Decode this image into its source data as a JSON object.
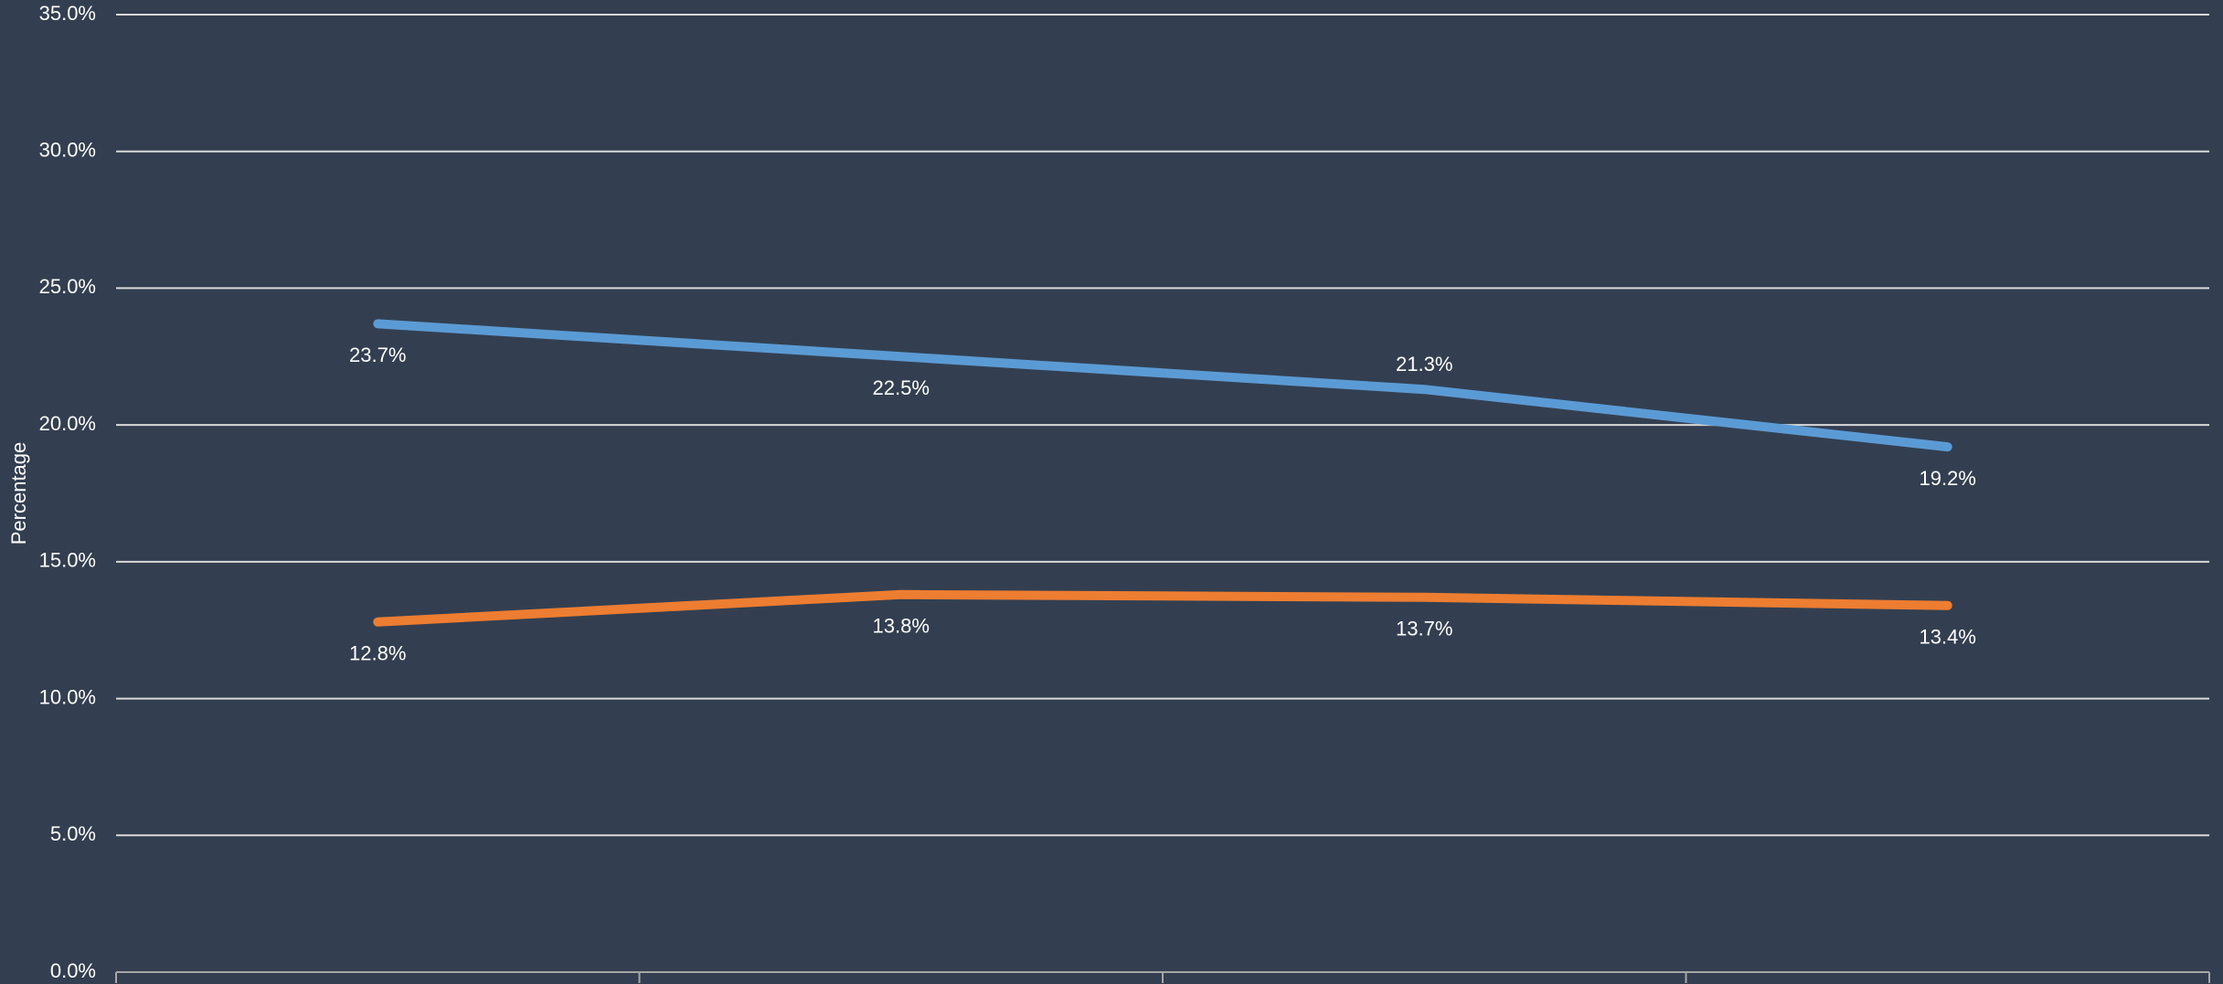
{
  "chart_data": {
    "type": "line",
    "y_label": "Percentage",
    "categories": [
      null,
      null,
      null,
      null
    ],
    "series": [
      {
        "color": "#5b9bd5",
        "values": [
          23.7,
          22.5,
          21.3,
          19.2
        ],
        "value_labels": [
          "23.7%",
          "22.5%",
          "21.3%",
          "19.2%"
        ]
      },
      {
        "color": "#ed7d31",
        "values": [
          12.8,
          13.8,
          13.7,
          13.4
        ],
        "value_labels": [
          "12.8%",
          "13.8%",
          "13.7%",
          "13.4%"
        ]
      }
    ],
    "ylim": [
      0,
      35
    ],
    "yticks": [
      {
        "value": 0,
        "label": "0.0%"
      },
      {
        "value": 5,
        "label": "5.0%"
      },
      {
        "value": 10,
        "label": "10.0%"
      },
      {
        "value": 15,
        "label": "15.0%"
      },
      {
        "value": 20,
        "label": "20.0%"
      },
      {
        "value": 25,
        "label": "25.0%"
      },
      {
        "value": 30,
        "label": "30.0%"
      },
      {
        "value": 35,
        "label": "35.0%"
      }
    ],
    "grid": true
  }
}
